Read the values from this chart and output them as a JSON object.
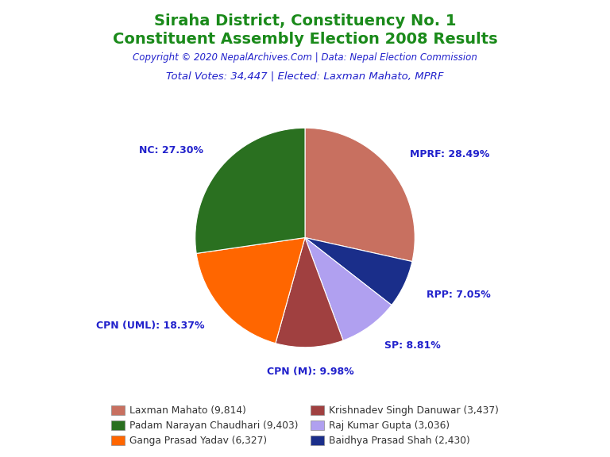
{
  "title_line1": "Siraha District, Constituency No. 1",
  "title_line2": "Constituent Assembly Election 2008 Results",
  "title_color": "#1a8a1a",
  "copyright_text": "Copyright © 2020 NepalArchives.Com | Data: Nepal Election Commission",
  "copyright_color": "#2222cc",
  "votes_text": "Total Votes: 34,447 | Elected: Laxman Mahato, MPRF",
  "votes_color": "#2222cc",
  "slices": [
    {
      "label": "MPRF",
      "pct": 28.49,
      "color": "#c87060"
    },
    {
      "label": "RPP",
      "pct": 7.05,
      "color": "#1a2e8a"
    },
    {
      "label": "SP",
      "pct": 8.81,
      "color": "#b0a0f0"
    },
    {
      "label": "CPN (M)",
      "pct": 9.98,
      "color": "#a04040"
    },
    {
      "label": "CPN (UML)",
      "pct": 18.37,
      "color": "#ff6600"
    },
    {
      "label": "NC",
      "pct": 27.3,
      "color": "#2a7020"
    }
  ],
  "legend_entries": [
    {
      "label": "Laxman Mahato (9,814)",
      "color": "#c87060"
    },
    {
      "label": "Padam Narayan Chaudhari (9,403)",
      "color": "#2a7020"
    },
    {
      "label": "Ganga Prasad Yadav (6,327)",
      "color": "#ff6600"
    },
    {
      "label": "Krishnadev Singh Danuwar (3,437)",
      "color": "#a04040"
    },
    {
      "label": "Raj Kumar Gupta (3,036)",
      "color": "#b0a0f0"
    },
    {
      "label": "Baidhya Prasad Shah (2,430)",
      "color": "#1a2e8a"
    }
  ],
  "label_color": "#2222cc",
  "background_color": "#ffffff"
}
